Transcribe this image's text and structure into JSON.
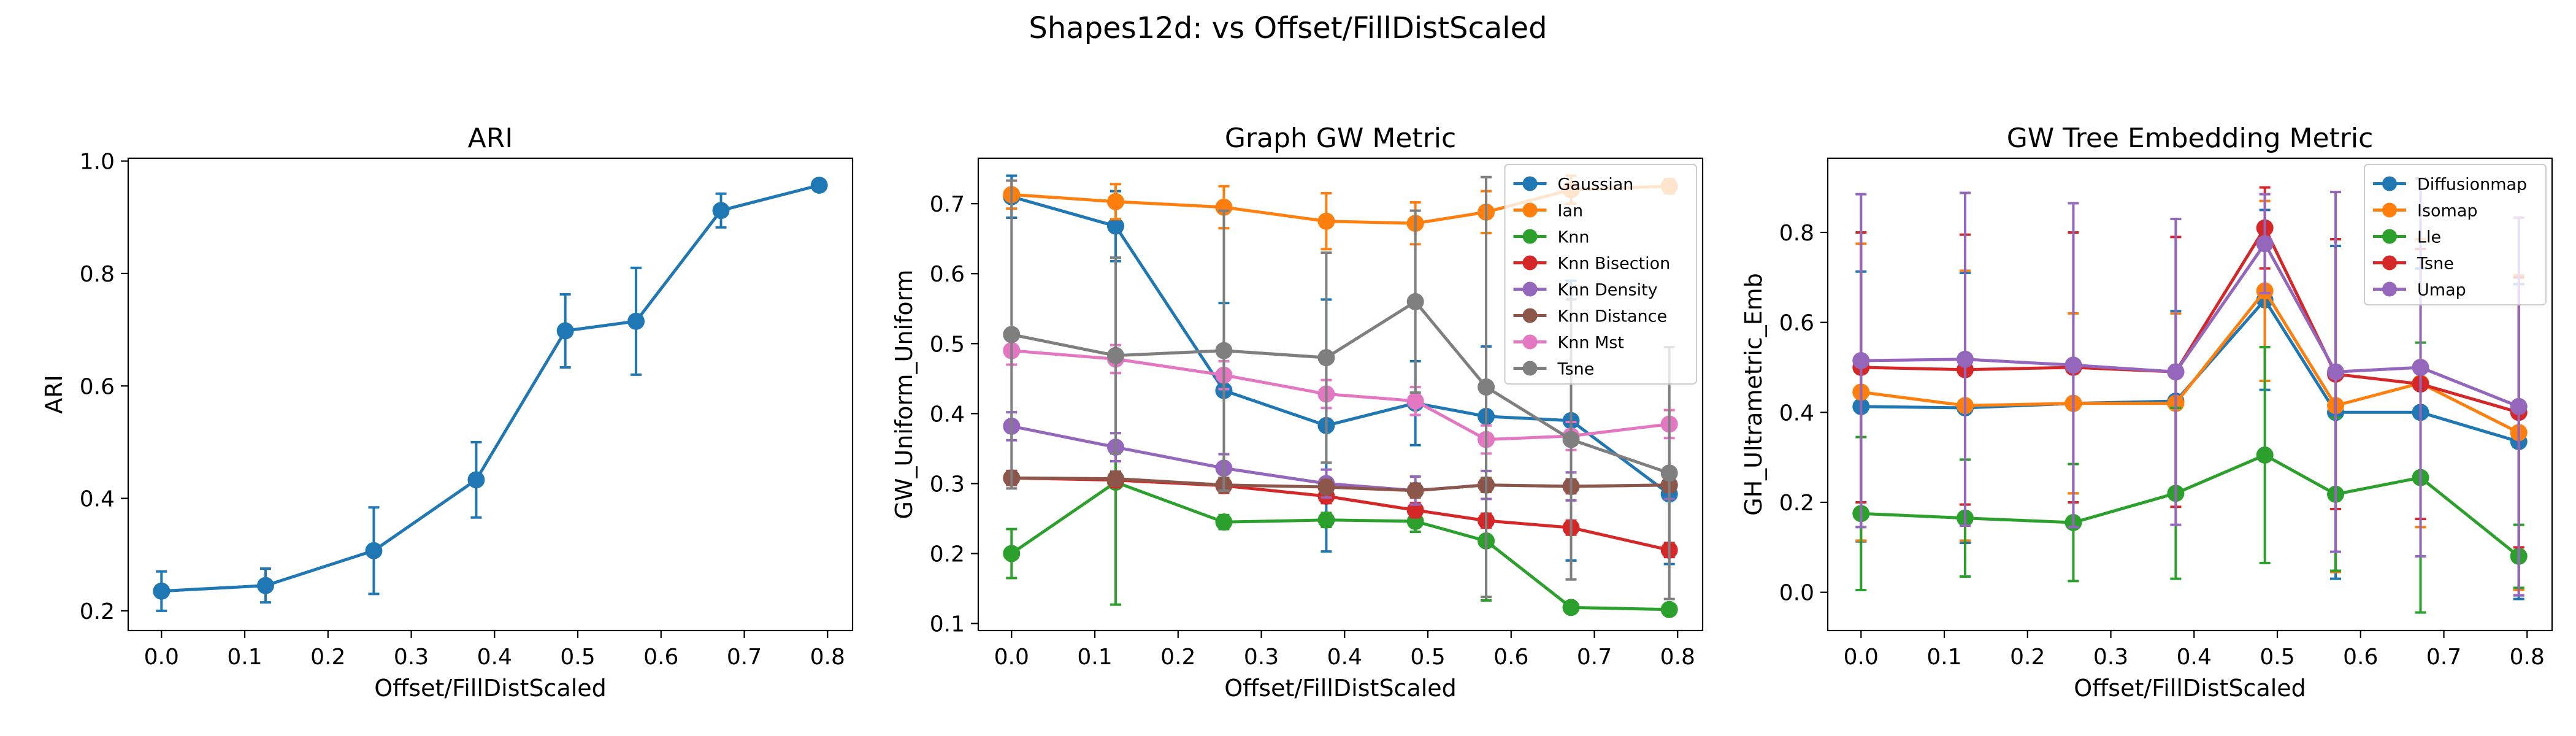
{
  "figure": {
    "title": "Shapes12d: vs Offset/FillDistScaled"
  },
  "chart_data": [
    {
      "type": "line",
      "title": "ARI",
      "xlabel": "Offset/FillDistScaled",
      "ylabel": "ARI",
      "xlim": [
        -0.04,
        0.83
      ],
      "ylim": [
        0.165,
        1.005
      ],
      "xticks": [
        0.0,
        0.1,
        0.2,
        0.3,
        0.4,
        0.5,
        0.6,
        0.7,
        0.8
      ],
      "xtick_labels": [
        "0.0",
        "0.1",
        "0.2",
        "0.3",
        "0.4",
        "0.5",
        "0.6",
        "0.7",
        "0.8"
      ],
      "yticks": [
        0.2,
        0.4,
        0.6,
        0.8,
        1.0
      ],
      "ytick_labels": [
        "0.2",
        "0.4",
        "0.6",
        "0.8",
        "1.0"
      ],
      "x": [
        0.0,
        0.125,
        0.255,
        0.378,
        0.485,
        0.57,
        0.672,
        0.79
      ],
      "legend": null,
      "series": [
        {
          "color": "#1f77b4",
          "values": [
            0.235,
            0.245,
            0.307,
            0.433,
            0.698,
            0.715,
            0.912,
            0.957
          ],
          "err": [
            0.035,
            0.03,
            0.077,
            0.067,
            0.065,
            0.095,
            0.03,
            0.0
          ]
        }
      ]
    },
    {
      "type": "line",
      "title": "Graph GW Metric",
      "xlabel": "Offset/FillDistScaled",
      "ylabel": "GW_Uniform_Uniform",
      "xlim": [
        -0.04,
        0.83
      ],
      "ylim": [
        0.09,
        0.765
      ],
      "xticks": [
        0.0,
        0.1,
        0.2,
        0.3,
        0.4,
        0.5,
        0.6,
        0.7,
        0.8
      ],
      "xtick_labels": [
        "0.0",
        "0.1",
        "0.2",
        "0.3",
        "0.4",
        "0.5",
        "0.6",
        "0.7",
        "0.8"
      ],
      "yticks": [
        0.1,
        0.2,
        0.3,
        0.4,
        0.5,
        0.6,
        0.7
      ],
      "ytick_labels": [
        "0.1",
        "0.2",
        "0.3",
        "0.4",
        "0.5",
        "0.6",
        "0.7"
      ],
      "x": [
        0.0,
        0.125,
        0.255,
        0.378,
        0.485,
        0.57,
        0.672,
        0.79
      ],
      "legend": "top-right",
      "series": [
        {
          "name": "Gaussian",
          "color": "#1f77b4",
          "values": [
            0.71,
            0.668,
            0.433,
            0.383,
            0.415,
            0.396,
            0.39,
            0.285
          ],
          "err": [
            0.03,
            0.05,
            0.125,
            0.18,
            0.06,
            0.1,
            0.2,
            0.1
          ]
        },
        {
          "name": "Ian",
          "color": "#ff7f0e",
          "values": [
            0.713,
            0.703,
            0.695,
            0.675,
            0.672,
            0.688,
            0.72,
            0.725
          ],
          "err": [
            0.02,
            0.025,
            0.03,
            0.04,
            0.03,
            0.03,
            0.02,
            0.01
          ]
        },
        {
          "name": "Knn",
          "color": "#2ca02c",
          "values": [
            0.2,
            0.302,
            0.245,
            0.248,
            0.246,
            0.218,
            0.123,
            0.12
          ],
          "err": [
            0.035,
            0.175,
            0.01,
            0.01,
            0.015,
            0.085,
            0.005,
            0.003
          ]
        },
        {
          "name": "Knn Bisection",
          "color": "#d62728",
          "values": [
            0.308,
            0.305,
            0.297,
            0.282,
            0.262,
            0.247,
            0.237,
            0.205
          ],
          "err": [
            0.01,
            0.01,
            0.01,
            0.01,
            0.01,
            0.01,
            0.01,
            0.01
          ]
        },
        {
          "name": "Knn Density",
          "color": "#9467bd",
          "values": [
            0.382,
            0.352,
            0.322,
            0.3,
            0.29,
            0.298,
            0.296,
            0.298
          ],
          "err": [
            0.02,
            0.02,
            0.02,
            0.02,
            0.02,
            0.02,
            0.02,
            0.02
          ]
        },
        {
          "name": "Knn Distance",
          "color": "#8c564b",
          "values": [
            0.308,
            0.307,
            0.298,
            0.295,
            0.29,
            0.298,
            0.296,
            0.298
          ],
          "err": [
            0.01,
            0.01,
            0.01,
            0.01,
            0.01,
            0.01,
            0.01,
            0.01
          ]
        },
        {
          "name": "Knn Mst",
          "color": "#e377c2",
          "values": [
            0.49,
            0.478,
            0.455,
            0.428,
            0.418,
            0.363,
            0.368,
            0.385
          ],
          "err": [
            0.02,
            0.02,
            0.02,
            0.02,
            0.02,
            0.02,
            0.02,
            0.02
          ]
        },
        {
          "name": "Tsne",
          "color": "#7f7f7f",
          "values": [
            0.513,
            0.483,
            0.49,
            0.48,
            0.56,
            0.438,
            0.363,
            0.315
          ],
          "err": [
            0.22,
            0.14,
            0.2,
            0.15,
            0.13,
            0.3,
            0.2,
            0.18
          ]
        }
      ]
    },
    {
      "type": "line",
      "title": "GW Tree Embedding Metric",
      "xlabel": "Offset/FillDistScaled",
      "ylabel": "GH_Ultrametric_Emb",
      "xlim": [
        -0.04,
        0.83
      ],
      "ylim": [
        -0.085,
        0.965
      ],
      "xticks": [
        0.0,
        0.1,
        0.2,
        0.3,
        0.4,
        0.5,
        0.6,
        0.7,
        0.8
      ],
      "xtick_labels": [
        "0.0",
        "0.1",
        "0.2",
        "0.3",
        "0.4",
        "0.5",
        "0.6",
        "0.7",
        "0.8"
      ],
      "yticks": [
        0.0,
        0.2,
        0.4,
        0.6,
        0.8
      ],
      "ytick_labels": [
        "0.0",
        "0.2",
        "0.4",
        "0.6",
        "0.8"
      ],
      "x": [
        0.0,
        0.125,
        0.255,
        0.378,
        0.485,
        0.57,
        0.672,
        0.79
      ],
      "legend": "top-right",
      "series": [
        {
          "name": "Diffusionmap",
          "color": "#1f77b4",
          "values": [
            0.413,
            0.41,
            0.42,
            0.425,
            0.65,
            0.4,
            0.4,
            0.335
          ],
          "err": [
            0.3,
            0.3,
            0.2,
            0.2,
            0.2,
            0.37,
            0.32,
            0.35
          ]
        },
        {
          "name": "Isomap",
          "color": "#ff7f0e",
          "values": [
            0.445,
            0.415,
            0.42,
            0.42,
            0.67,
            0.415,
            0.465,
            0.355
          ],
          "err": [
            0.33,
            0.3,
            0.2,
            0.2,
            0.2,
            0.37,
            0.32,
            0.35
          ]
        },
        {
          "name": "Lle",
          "color": "#2ca02c",
          "values": [
            0.175,
            0.165,
            0.155,
            0.22,
            0.305,
            0.218,
            0.255,
            0.08
          ],
          "err": [
            0.17,
            0.13,
            0.13,
            0.19,
            0.24,
            0.17,
            0.3,
            0.07
          ]
        },
        {
          "name": "Tsne",
          "color": "#d62728",
          "values": [
            0.5,
            0.495,
            0.5,
            0.49,
            0.81,
            0.485,
            0.463,
            0.4
          ],
          "err": [
            0.3,
            0.3,
            0.3,
            0.3,
            0.09,
            0.3,
            0.3,
            0.3
          ]
        },
        {
          "name": "Umap",
          "color": "#9467bd",
          "values": [
            0.515,
            0.518,
            0.505,
            0.49,
            0.775,
            0.49,
            0.5,
            0.413
          ],
          "err": [
            0.37,
            0.37,
            0.36,
            0.34,
            0.11,
            0.4,
            0.42,
            0.42
          ]
        }
      ]
    }
  ]
}
